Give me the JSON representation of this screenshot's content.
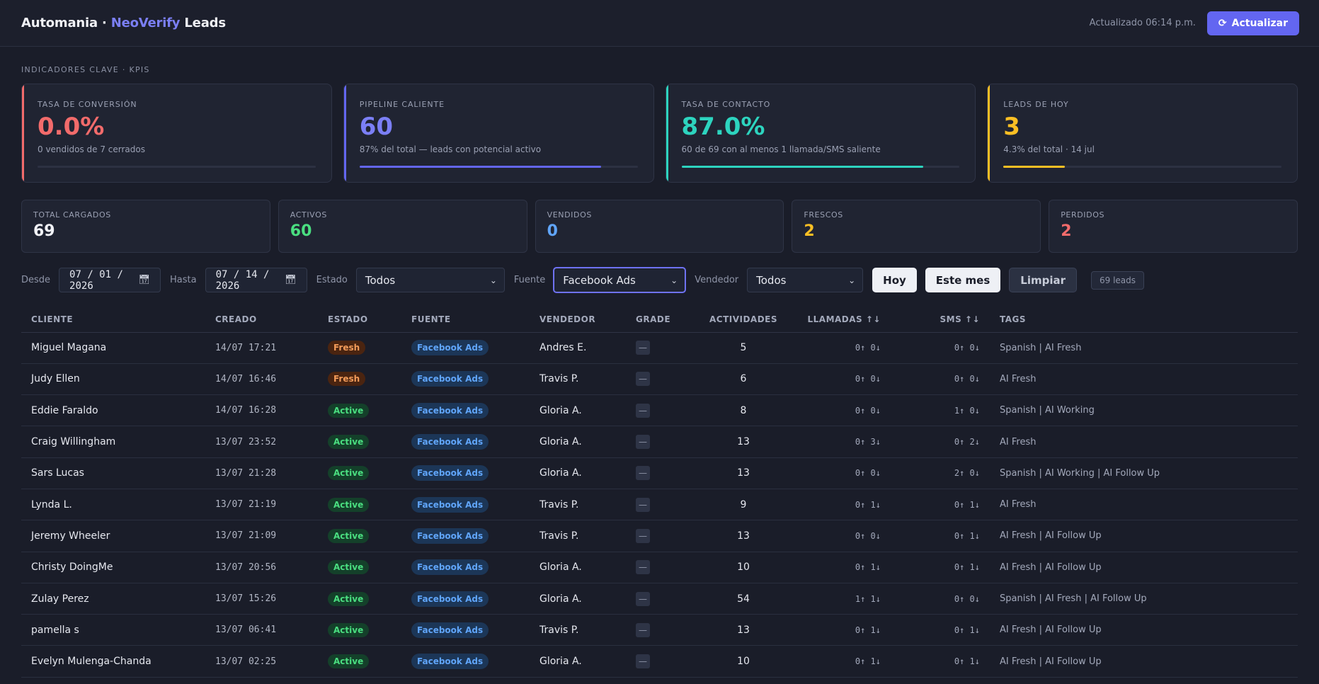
{
  "header": {
    "brand_prefix": "Automania · ",
    "brand_accent": "NeoVerify",
    "brand_suffix": " Leads",
    "updated": "Actualizado 06:14 p.m.",
    "refresh_label": "Actualizar"
  },
  "kpis": {
    "section_title": "INDICADORES CLAVE · KPIS",
    "cards": [
      {
        "label": "TASA DE CONVERSIÓN",
        "value": "0.0%",
        "sub": "0 vendidos de 7 cerrados",
        "progress": 0
      },
      {
        "label": "PIPELINE CALIENTE",
        "value": "60",
        "sub": "87% del total — leads con potencial activo",
        "progress": 87
      },
      {
        "label": "TASA DE CONTACTO",
        "value": "87.0%",
        "sub": "60 de 69 con al menos 1 llamada/SMS saliente",
        "progress": 87
      },
      {
        "label": "LEADS DE HOY",
        "value": "3",
        "sub": "4.3% del total · 14 jul",
        "progress": 22
      }
    ]
  },
  "stats": [
    {
      "label": "TOTAL CARGADOS",
      "value": "69",
      "color": "#f1f2f7"
    },
    {
      "label": "ACTIVOS",
      "value": "60",
      "color": "#4ade80"
    },
    {
      "label": "VENDIDOS",
      "value": "0",
      "color": "#60a5fa"
    },
    {
      "label": "FRESCOS",
      "value": "2",
      "color": "#fbbf24"
    },
    {
      "label": "PERDIDOS",
      "value": "2",
      "color": "#f26b6b"
    }
  ],
  "filters": {
    "from_label": "Desde",
    "from_value": "07 / 01 / 2026",
    "to_label": "Hasta",
    "to_value": "07 / 14 / 2026",
    "estado_label": "Estado",
    "estado_value": "Todos",
    "fuente_label": "Fuente",
    "fuente_value": "Facebook Ads",
    "vendedor_label": "Vendedor",
    "vendedor_value": "Todos",
    "today_btn": "Hoy",
    "month_btn": "Este mes",
    "clear_btn": "Limpiar",
    "count": "69 leads"
  },
  "table": {
    "headers": [
      "CLIENTE",
      "CREADO",
      "ESTADO",
      "FUENTE",
      "VENDEDOR",
      "GRADE",
      "ACTIVIDADES",
      "LLAMADAS ↑↓",
      "SMS ↑↓",
      "TAGS"
    ],
    "rows": [
      {
        "client": "Miguel Magana",
        "created": "14/07 17:21",
        "status": "Fresh",
        "source": "Facebook Ads",
        "seller": "Andres E.",
        "grade": "—",
        "activities": "5",
        "calls": "0↑ 0↓",
        "sms": "0↑ 0↓",
        "tags": "Spanish | AI Fresh"
      },
      {
        "client": "Judy Ellen",
        "created": "14/07 16:46",
        "status": "Fresh",
        "source": "Facebook Ads",
        "seller": "Travis P.",
        "grade": "—",
        "activities": "6",
        "calls": "0↑ 0↓",
        "sms": "0↑ 0↓",
        "tags": "AI Fresh"
      },
      {
        "client": "Eddie Faraldo",
        "created": "14/07 16:28",
        "status": "Active",
        "source": "Facebook Ads",
        "seller": "Gloria A.",
        "grade": "—",
        "activities": "8",
        "calls": "0↑ 0↓",
        "sms": "1↑ 0↓",
        "tags": "Spanish | AI Working"
      },
      {
        "client": "Craig Willingham",
        "created": "13/07 23:52",
        "status": "Active",
        "source": "Facebook Ads",
        "seller": "Gloria A.",
        "grade": "—",
        "activities": "13",
        "calls": "0↑ 3↓",
        "sms": "0↑ 2↓",
        "tags": "AI Fresh"
      },
      {
        "client": "Sars Lucas",
        "created": "13/07 21:28",
        "status": "Active",
        "source": "Facebook Ads",
        "seller": "Gloria A.",
        "grade": "—",
        "activities": "13",
        "calls": "0↑ 0↓",
        "sms": "2↑ 0↓",
        "tags": "Spanish | AI Working | AI Follow Up"
      },
      {
        "client": "Lynda L.",
        "created": "13/07 21:19",
        "status": "Active",
        "source": "Facebook Ads",
        "seller": "Travis P.",
        "grade": "—",
        "activities": "9",
        "calls": "0↑ 1↓",
        "sms": "0↑ 1↓",
        "tags": "AI Fresh"
      },
      {
        "client": "Jeremy Wheeler",
        "created": "13/07 21:09",
        "status": "Active",
        "source": "Facebook Ads",
        "seller": "Travis P.",
        "grade": "—",
        "activities": "13",
        "calls": "0↑ 0↓",
        "sms": "0↑ 1↓",
        "tags": "AI Fresh | AI Follow Up"
      },
      {
        "client": "Christy DoingMe",
        "created": "13/07 20:56",
        "status": "Active",
        "source": "Facebook Ads",
        "seller": "Gloria A.",
        "grade": "—",
        "activities": "10",
        "calls": "0↑ 1↓",
        "sms": "0↑ 1↓",
        "tags": "AI Fresh | AI Follow Up"
      },
      {
        "client": "Zulay Perez",
        "created": "13/07 15:26",
        "status": "Active",
        "source": "Facebook Ads",
        "seller": "Gloria A.",
        "grade": "—",
        "activities": "54",
        "calls": "1↑ 1↓",
        "sms": "0↑ 0↓",
        "tags": "Spanish | AI Fresh | AI Follow Up"
      },
      {
        "client": "pamella s",
        "created": "13/07 06:41",
        "status": "Active",
        "source": "Facebook Ads",
        "seller": "Travis P.",
        "grade": "—",
        "activities": "13",
        "calls": "0↑ 1↓",
        "sms": "0↑ 1↓",
        "tags": "AI Fresh | AI Follow Up"
      },
      {
        "client": "Evelyn Mulenga-Chanda",
        "created": "13/07 02:25",
        "status": "Active",
        "source": "Facebook Ads",
        "seller": "Gloria A.",
        "grade": "—",
        "activities": "10",
        "calls": "0↑ 1↓",
        "sms": "0↑ 1↓",
        "tags": "AI Fresh | AI Follow Up"
      }
    ]
  }
}
